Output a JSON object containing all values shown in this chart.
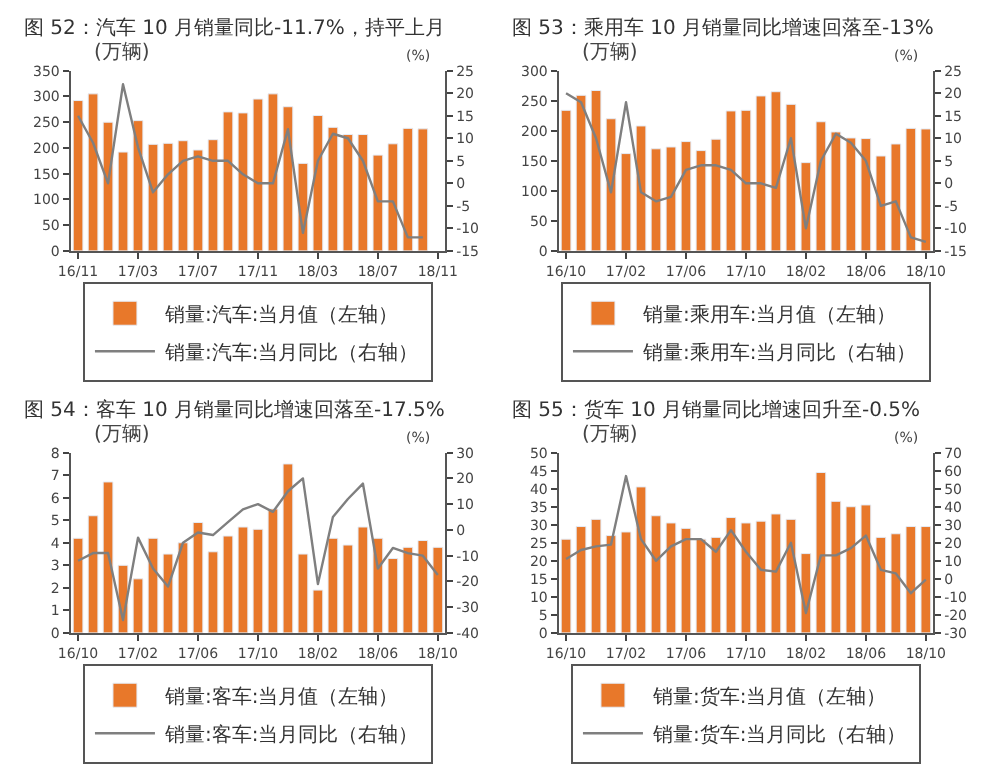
{
  "chart_data": [
    {
      "type": "bar",
      "title": "图 52：汽车 10 月销量同比-11.7%，持平上月",
      "ylabel": "(万辆)",
      "y2label": "(%)",
      "categories": [
        "16/11",
        null,
        null,
        null,
        "17/03",
        null,
        null,
        null,
        "17/07",
        null,
        null,
        null,
        "17/11",
        null,
        null,
        null,
        "18/03",
        null,
        null,
        null,
        "18/07",
        null,
        null,
        null,
        "18/11"
      ],
      "series": [
        {
          "name": "销量:汽车:当月值（左轴）",
          "color": "#e8782a",
          "values": [
            292,
            305,
            250,
            192,
            253,
            207,
            209,
            214,
            196,
            216,
            270,
            268,
            295,
            305,
            280,
            170,
            263,
            240,
            226,
            226,
            186,
            208,
            238,
            237,
            null
          ]
        },
        {
          "name": "销量:汽车:当月同比（右轴）",
          "type": "line",
          "axis": "y2",
          "color": "#7f7f7f",
          "values": [
            15,
            9,
            0,
            22,
            8,
            -2,
            2,
            5,
            6,
            5,
            5,
            2,
            0,
            0,
            12,
            -11,
            5,
            11,
            10,
            5,
            -4,
            -4,
            -12,
            -12,
            null
          ]
        }
      ],
      "ylim": [
        0,
        350
      ],
      "yticks": [
        0,
        50,
        100,
        150,
        200,
        250,
        300,
        350
      ],
      "y2lim": [
        -15,
        25
      ],
      "y2ticks": [
        -15,
        -10,
        -5,
        0,
        5,
        10,
        15,
        20,
        25
      ],
      "legend": "bottom"
    },
    {
      "type": "bar",
      "title": "图 53：乘用车 10 月销量同比增速回落至-13%",
      "ylabel": "(万辆)",
      "y2label": "(%)",
      "categories": [
        "16/10",
        null,
        null,
        null,
        "17/02",
        null,
        null,
        null,
        "17/06",
        null,
        null,
        null,
        "17/10",
        null,
        null,
        null,
        "18/02",
        null,
        null,
        null,
        "18/06",
        null,
        null,
        null,
        "18/10"
      ],
      "series": [
        {
          "name": "销量:乘用车:当月值（左轴）",
          "color": "#e8782a",
          "values": [
            234,
            259,
            267,
            220,
            162,
            208,
            170,
            173,
            182,
            167,
            186,
            233,
            234,
            258,
            265,
            244,
            147,
            215,
            198,
            188,
            187,
            158,
            178,
            204,
            203
          ]
        },
        {
          "name": "销量:乘用车:当月同比（右轴）",
          "type": "line",
          "axis": "y2",
          "color": "#7f7f7f",
          "values": [
            20,
            18,
            10,
            -2,
            18,
            -2,
            -4,
            -3,
            3,
            4,
            4,
            3,
            0,
            0,
            -1,
            10,
            -10,
            5,
            11,
            9,
            5,
            -5,
            -4,
            -12,
            -13
          ]
        }
      ],
      "ylim": [
        0,
        300
      ],
      "yticks": [
        0,
        50,
        100,
        150,
        200,
        250,
        300
      ],
      "y2lim": [
        -15,
        25
      ],
      "y2ticks": [
        -15,
        -10,
        -5,
        0,
        5,
        10,
        15,
        20,
        25
      ],
      "legend": "bottom"
    },
    {
      "type": "bar",
      "title": "图 54：客车 10 月销量同比增速回落至-17.5%",
      "ylabel": "(万辆)",
      "y2label": "(%)",
      "categories": [
        "16/10",
        null,
        null,
        null,
        "17/02",
        null,
        null,
        null,
        "17/06",
        null,
        null,
        null,
        "17/10",
        null,
        null,
        null,
        "18/02",
        null,
        null,
        null,
        "18/06",
        null,
        null,
        null,
        "18/10"
      ],
      "series": [
        {
          "name": "销量:客车:当月值（左轴）",
          "color": "#e8782a",
          "values": [
            4.2,
            5.2,
            6.7,
            3.0,
            2.4,
            4.2,
            3.5,
            4.0,
            4.9,
            3.6,
            4.3,
            4.7,
            4.6,
            5.5,
            7.5,
            3.5,
            1.9,
            4.2,
            3.9,
            4.7,
            4.2,
            3.3,
            3.8,
            4.1,
            3.8
          ]
        },
        {
          "name": "销量:客车:当月同比（右轴）",
          "type": "line",
          "axis": "y2",
          "color": "#7f7f7f",
          "values": [
            -12,
            -9,
            -9,
            -35,
            -3,
            -15,
            -22,
            -5,
            -1,
            -2,
            3,
            8,
            10,
            7,
            15,
            20,
            -21,
            5,
            12,
            18,
            -15,
            -7,
            -9,
            -10,
            -17.5
          ]
        }
      ],
      "ylim": [
        0,
        8
      ],
      "yticks": [
        0,
        1,
        2,
        3,
        4,
        5,
        6,
        7,
        8
      ],
      "y2lim": [
        -40,
        30
      ],
      "y2ticks": [
        -40,
        -30,
        -20,
        -10,
        0,
        10,
        20,
        30
      ],
      "legend": "bottom"
    },
    {
      "type": "bar",
      "title": "图 55：货车 10 月销量同比增速回升至-0.5%",
      "ylabel": "(万辆)",
      "y2label": "(%)",
      "categories": [
        "16/10",
        null,
        null,
        null,
        "17/02",
        null,
        null,
        null,
        "17/06",
        null,
        null,
        null,
        "17/10",
        null,
        null,
        null,
        "18/02",
        null,
        null,
        null,
        "18/06",
        null,
        null,
        null,
        "18/10"
      ],
      "series": [
        {
          "name": "销量:货车:当月值（左轴）",
          "color": "#e8782a",
          "values": [
            26,
            29.5,
            31.5,
            27,
            28,
            40.5,
            32.5,
            30.5,
            29,
            26,
            26.5,
            32,
            30.5,
            31,
            33,
            31.5,
            22,
            44.5,
            36.5,
            35,
            35.5,
            26.5,
            27.5,
            29.5,
            29.5
          ]
        },
        {
          "name": "销量:货车:当月同比（右轴）",
          "type": "line",
          "axis": "y2",
          "color": "#7f7f7f",
          "values": [
            11,
            16,
            18,
            19,
            57,
            22,
            10,
            18,
            22,
            22,
            15,
            27,
            15,
            5,
            4,
            20,
            -19,
            13,
            13,
            17,
            24,
            5,
            3,
            -8,
            -0.5
          ]
        }
      ],
      "ylim": [
        0,
        50
      ],
      "yticks": [
        0,
        5,
        10,
        15,
        20,
        25,
        30,
        35,
        40,
        45,
        50
      ],
      "y2lim": [
        -30,
        70
      ],
      "y2ticks": [
        -30,
        -20,
        -10,
        0,
        10,
        20,
        30,
        40,
        50,
        60,
        70
      ],
      "legend": "bottom"
    }
  ]
}
